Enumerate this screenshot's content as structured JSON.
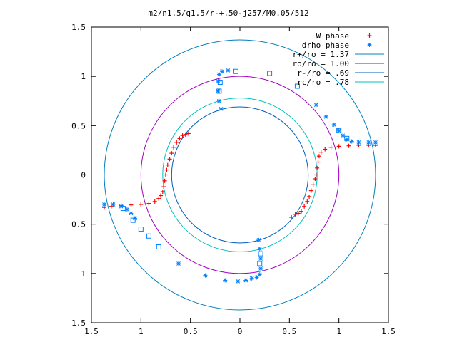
{
  "chart_data": {
    "type": "scatter",
    "title": "m2/n1.5/q1.5/r-+.50-j257/M0.05/512",
    "xlim": [
      -1.5,
      1.5
    ],
    "ylim": [
      -1.5,
      1.5
    ],
    "x_tick_labels": [
      "1.5",
      "1",
      "0.5",
      "0",
      "0.5",
      "1",
      "1.5"
    ],
    "x_tick_values": [
      -1.5,
      -1,
      -0.5,
      0,
      0.5,
      1,
      1.5
    ],
    "y_tick_labels": [
      "1.5",
      "1",
      "0.5",
      "0",
      "0.5",
      "1",
      "1.5"
    ],
    "y_tick_values": [
      1.5,
      1,
      0.5,
      0,
      -0.5,
      -1,
      -1.5
    ],
    "grid": false,
    "legend_position": "top-right",
    "series": [
      {
        "name": "W phase",
        "marker": "plus",
        "color": "#ff0000",
        "points": [
          [
            -1.37,
            -0.33
          ],
          [
            -1.3,
            -0.32
          ],
          [
            -1.2,
            -0.31
          ],
          [
            -1.1,
            -0.305
          ],
          [
            -1.0,
            -0.3
          ],
          [
            -0.92,
            -0.29
          ],
          [
            -0.86,
            -0.27
          ],
          [
            -0.82,
            -0.24
          ],
          [
            -0.8,
            -0.21
          ],
          [
            -0.78,
            -0.17
          ],
          [
            -0.77,
            -0.12
          ],
          [
            -0.76,
            -0.06
          ],
          [
            -0.75,
            0.0
          ],
          [
            -0.74,
            0.05
          ],
          [
            -0.73,
            0.1
          ],
          [
            -0.71,
            0.16
          ],
          [
            -0.69,
            0.22
          ],
          [
            -0.67,
            0.28
          ],
          [
            -0.64,
            0.33
          ],
          [
            -0.61,
            0.37
          ],
          [
            -0.58,
            0.4
          ],
          [
            -0.55,
            0.41
          ],
          [
            -0.52,
            0.42
          ],
          [
            1.37,
            0.3
          ],
          [
            1.3,
            0.3
          ],
          [
            1.2,
            0.3
          ],
          [
            1.1,
            0.295
          ],
          [
            1.0,
            0.29
          ],
          [
            0.92,
            0.28
          ],
          [
            0.86,
            0.26
          ],
          [
            0.82,
            0.23
          ],
          [
            0.8,
            0.19
          ],
          [
            0.79,
            0.13
          ],
          [
            0.78,
            0.07
          ],
          [
            0.77,
            0.0
          ],
          [
            0.76,
            -0.04
          ],
          [
            0.74,
            -0.1
          ],
          [
            0.72,
            -0.16
          ],
          [
            0.7,
            -0.22
          ],
          [
            0.68,
            -0.27
          ],
          [
            0.65,
            -0.32
          ],
          [
            0.62,
            -0.37
          ],
          [
            0.59,
            -0.39
          ],
          [
            0.56,
            -0.4
          ],
          [
            0.52,
            -0.43
          ]
        ]
      },
      {
        "name": "drho phase",
        "marker": "star",
        "color": "#0080ff",
        "points": [
          [
            -1.37,
            -0.3
          ],
          [
            -1.28,
            -0.3
          ],
          [
            -1.2,
            -0.32
          ],
          [
            -1.14,
            -0.35
          ],
          [
            -1.1,
            -0.39
          ],
          [
            -1.06,
            -0.44
          ],
          [
            -0.62,
            -0.9
          ],
          [
            -0.35,
            -1.02
          ],
          [
            -0.15,
            -1.07
          ],
          [
            -0.02,
            -1.08
          ],
          [
            0.06,
            -1.07
          ],
          [
            0.12,
            -1.05
          ],
          [
            0.17,
            -1.04
          ],
          [
            0.2,
            -1.01
          ],
          [
            0.21,
            -0.95
          ],
          [
            0.21,
            -0.85
          ],
          [
            0.2,
            -0.75
          ],
          [
            0.19,
            -0.66
          ],
          [
            -0.19,
            0.67
          ],
          [
            -0.21,
            0.75
          ],
          [
            -0.22,
            0.85
          ],
          [
            -0.22,
            0.95
          ],
          [
            -0.21,
            1.02
          ],
          [
            -0.18,
            1.05
          ],
          [
            -0.12,
            1.06
          ],
          [
            0.77,
            0.71
          ],
          [
            0.87,
            0.59
          ],
          [
            0.95,
            0.51
          ],
          [
            1.0,
            0.45
          ],
          [
            1.04,
            0.4
          ],
          [
            1.08,
            0.36
          ],
          [
            1.13,
            0.34
          ],
          [
            1.2,
            0.33
          ],
          [
            1.3,
            0.33
          ],
          [
            1.37,
            0.33
          ]
        ]
      },
      {
        "name": "",
        "marker": "square",
        "color": "#0080ff",
        "points": [
          [
            -1.18,
            -0.34
          ],
          [
            -1.08,
            -0.46
          ],
          [
            -1.0,
            -0.55
          ],
          [
            -0.92,
            -0.62
          ],
          [
            -0.82,
            -0.73
          ],
          [
            -0.04,
            1.05
          ],
          [
            0.3,
            1.03
          ],
          [
            0.58,
            0.9
          ],
          [
            1.0,
            0.45
          ],
          [
            1.08,
            0.37
          ],
          [
            -0.2,
            0.94
          ],
          [
            -0.21,
            0.85
          ],
          [
            0.21,
            -0.8
          ],
          [
            0.2,
            -0.9
          ]
        ]
      }
    ],
    "circles": [
      {
        "label": "r+/ro = 1.37",
        "radius": 1.37,
        "color": "#0080c0"
      },
      {
        "label": "ro/ro = 1.00",
        "radius": 1.0,
        "color": "#a000c0"
      },
      {
        "label": "r-/ro =  .69",
        "radius": 0.69,
        "color": "#0060c0"
      },
      {
        "label": "rc/ro =  .78",
        "radius": 0.78,
        "color": "#00c0c0"
      }
    ]
  }
}
